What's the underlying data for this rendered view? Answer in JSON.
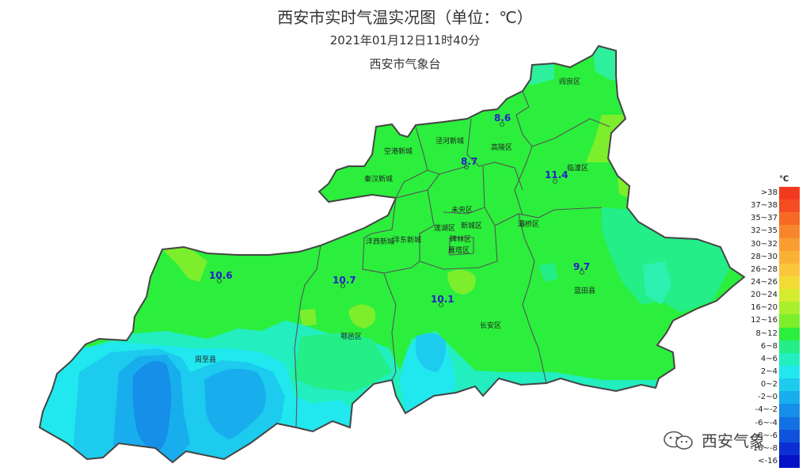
{
  "header": {
    "title": "西安市实时气温实况图（单位：℃）",
    "timestamp": "2021年01月12日11时40分",
    "organization": "西安市气象台"
  },
  "map": {
    "districts": [
      {
        "name": "阎良区"
      },
      {
        "name": "泾河新城"
      },
      {
        "name": "高陵区"
      },
      {
        "name": "空港新城"
      },
      {
        "name": "秦汉新城"
      },
      {
        "name": "临潼区"
      },
      {
        "name": "未央区"
      },
      {
        "name": "莲湖区"
      },
      {
        "name": "新城区"
      },
      {
        "name": "灞桥区"
      },
      {
        "name": "碑林区"
      },
      {
        "name": "雁塔区"
      },
      {
        "name": "沣西新城"
      },
      {
        "name": "沣东新城"
      },
      {
        "name": "蓝田县"
      },
      {
        "name": "鄠邑区"
      },
      {
        "name": "长安区"
      },
      {
        "name": "周至县"
      }
    ],
    "station_readings": [
      {
        "value": "8.6"
      },
      {
        "value": "8.7"
      },
      {
        "value": "11.4"
      },
      {
        "value": "10.6"
      },
      {
        "value": "10.7"
      },
      {
        "value": "10.1"
      },
      {
        "value": "9.7"
      }
    ]
  },
  "legend": {
    "unit": "℃",
    "items": [
      {
        "label": ">38",
        "color": "#f23a1f"
      },
      {
        "label": "37~38",
        "color": "#f44d22"
      },
      {
        "label": "35~37",
        "color": "#f66a25"
      },
      {
        "label": "32~35",
        "color": "#f8852b"
      },
      {
        "label": "30~32",
        "color": "#f99d30"
      },
      {
        "label": "28~30",
        "color": "#fab236"
      },
      {
        "label": "26~28",
        "color": "#fbc53c"
      },
      {
        "label": "24~26",
        "color": "#f1dc36"
      },
      {
        "label": "20~24",
        "color": "#d5ec2e"
      },
      {
        "label": "16~20",
        "color": "#a9ef2c"
      },
      {
        "label": "12~16",
        "color": "#7cee2c"
      },
      {
        "label": "8~12",
        "color": "#2bef3c"
      },
      {
        "label": "6~8",
        "color": "#23ee88"
      },
      {
        "label": "4~6",
        "color": "#22eec0"
      },
      {
        "label": "2~4",
        "color": "#20e8ee"
      },
      {
        "label": "0~2",
        "color": "#1ccbee"
      },
      {
        "label": "-2~0",
        "color": "#18aeee"
      },
      {
        "label": "-4~-2",
        "color": "#158fe8"
      },
      {
        "label": "-6~-4",
        "color": "#1270e2"
      },
      {
        "label": "-8~-6",
        "color": "#0f52dc"
      },
      {
        "label": "-16~-8",
        "color": "#0a2fd2"
      },
      {
        "label": "<-16",
        "color": "#0512c6"
      }
    ]
  },
  "watermark": {
    "text": "西安气象",
    "icon": "wechat-icon"
  }
}
